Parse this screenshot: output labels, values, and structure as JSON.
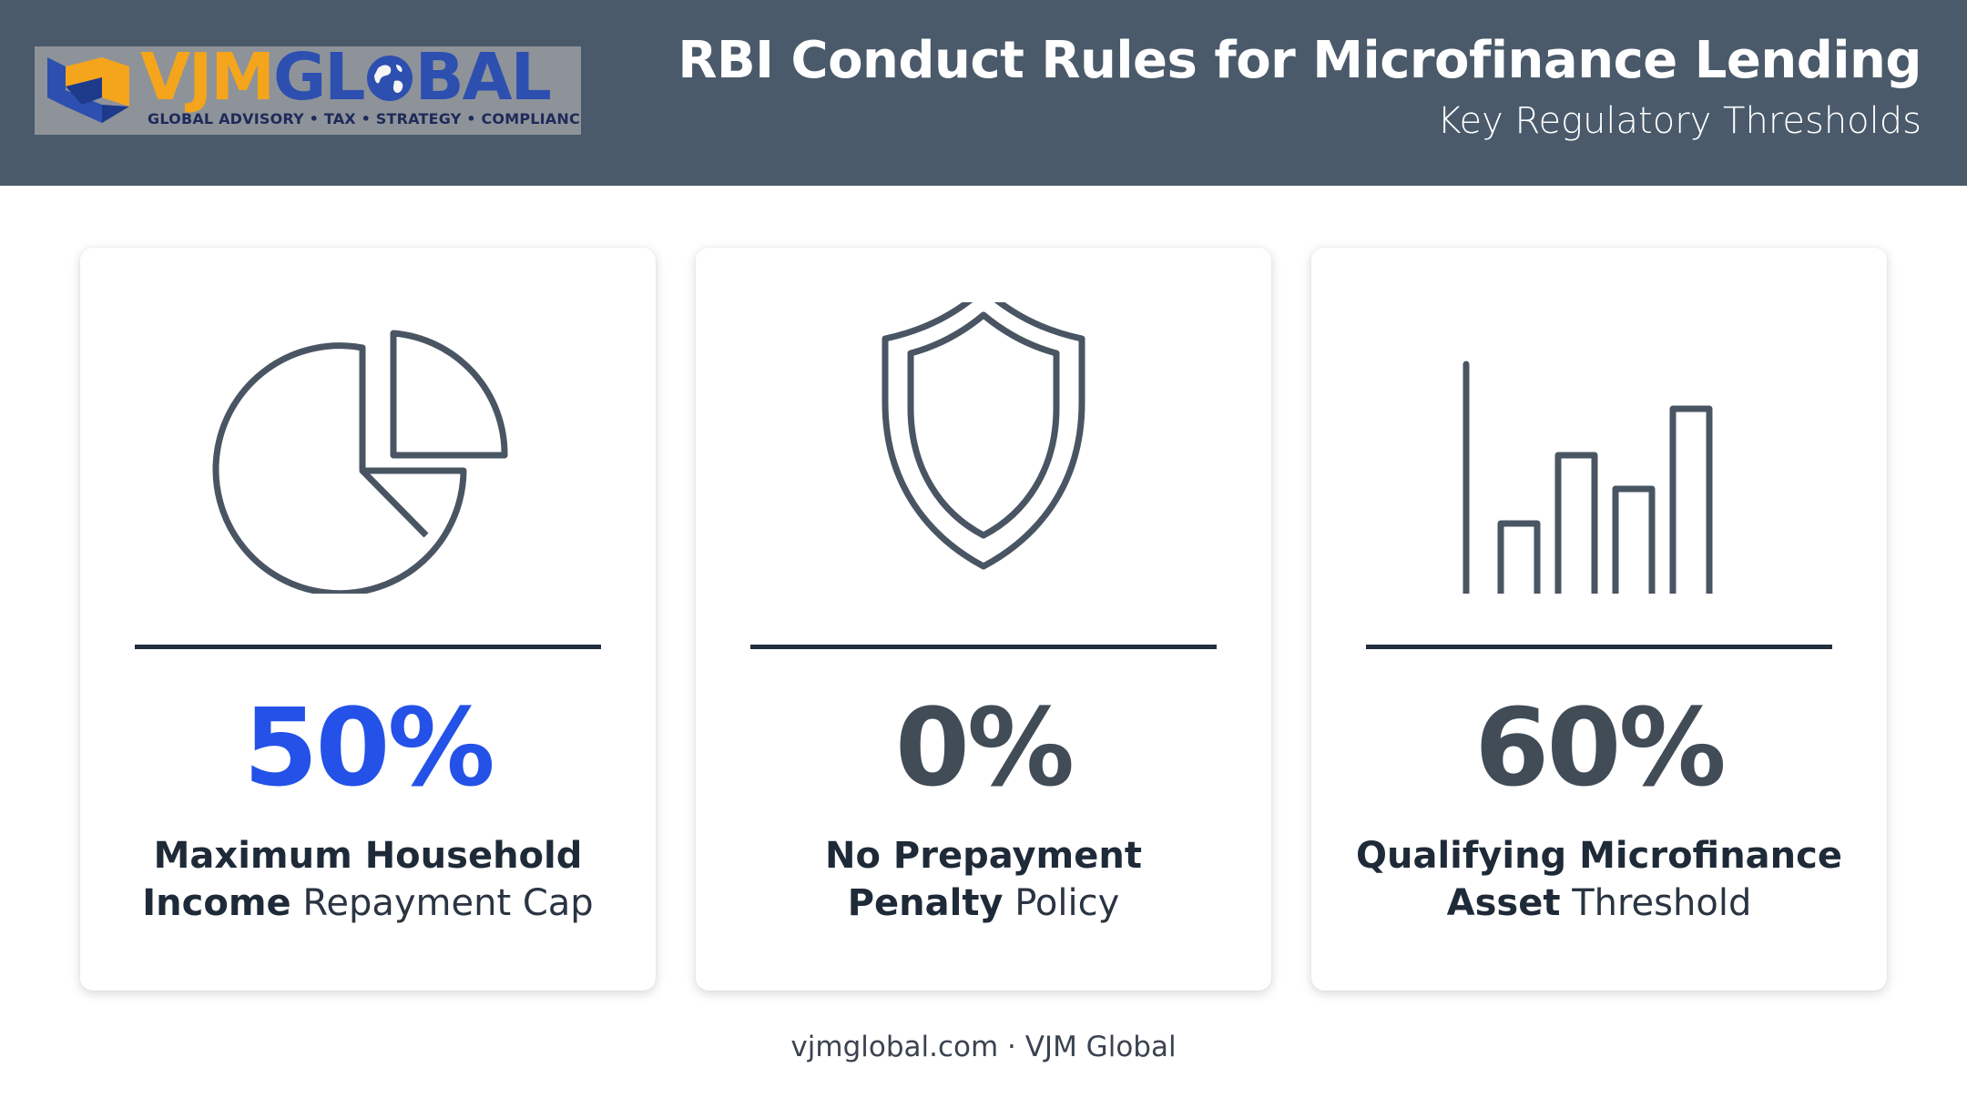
{
  "header": {
    "logo": {
      "word_part1": "VJM",
      "word_part2a": "GL",
      "word_part2b": "BAL",
      "tagline": "GLOBAL ADVISORY • TAX • STRATEGY • COMPLIANCE"
    },
    "title": "RBI Conduct Rules for Microfinance Lending",
    "subtitle": "Key Regulatory Thresholds"
  },
  "cards": [
    {
      "icon": "pie-chart-icon",
      "value": "50%",
      "label_bold_1": "Maximum Household",
      "label_bold_2": "Income",
      "label_regular": " Repayment Cap",
      "value_color": "#2452e8"
    },
    {
      "icon": "shield-icon",
      "value": "0%",
      "label_bold_1": "No Prepayment",
      "label_bold_2": "Penalty",
      "label_regular": " Policy",
      "value_color": "#414c57"
    },
    {
      "icon": "bar-chart-icon",
      "value": "60%",
      "label_bold_1": "Qualifying Microfinance",
      "label_bold_2": "Asset",
      "label_regular": " Threshold",
      "value_color": "#414c57"
    }
  ],
  "footer": {
    "text": "vjmglobal.com · VJM Global"
  },
  "colors": {
    "header_bg": "#4a5a6a",
    "accent": "#2452e8",
    "icon_stroke": "#4a5563",
    "rule": "#222f3e"
  }
}
